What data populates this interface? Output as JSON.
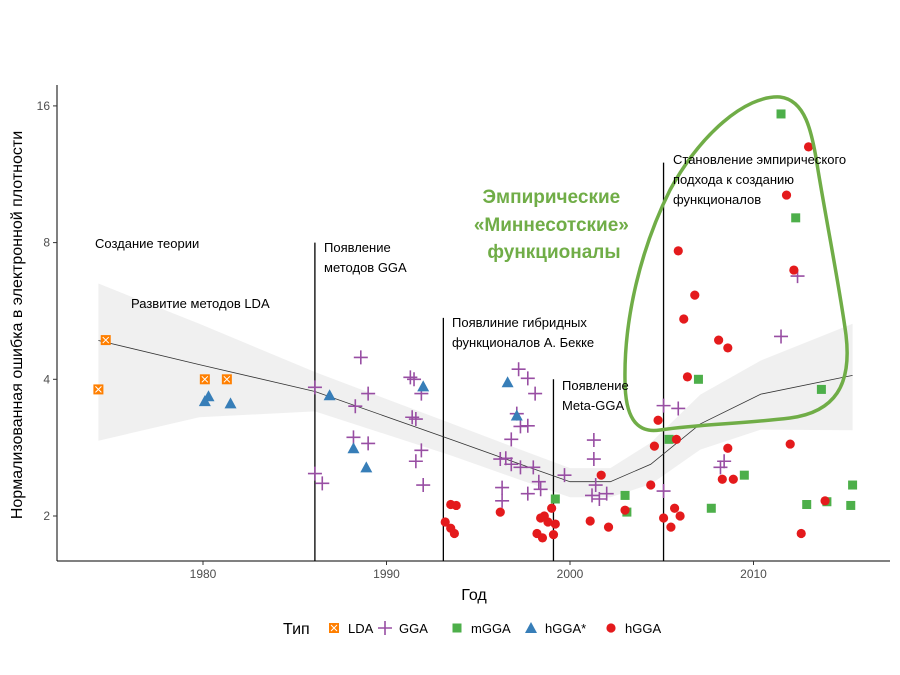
{
  "chart_data": {
    "type": "scatter",
    "xlabel": "Год",
    "ylabel": "Нормализованная ошибка в электронной плотности",
    "x_ticks": [
      1980,
      1990,
      2000,
      2010
    ],
    "y_ticks": [
      2,
      4,
      8,
      16
    ],
    "xlim": [
      1972,
      2017.4
    ],
    "ylim": [
      1.6,
      17.8
    ],
    "y_scale": "log2",
    "grid": false,
    "legend": {
      "title": "Тип",
      "placement": "bottom",
      "entries": [
        "LDA",
        "GGA",
        "mGGA",
        "hGGA*",
        "hGGA"
      ]
    },
    "colors": {
      "LDA": "#FF7F00",
      "GGA": "#984EA3",
      "mGGA": "#4DAF4A",
      "hGGA*": "#377EB8",
      "hGGA": "#E41A1C",
      "highlight": "#70AD47"
    },
    "markers": {
      "LDA": "square-cross",
      "GGA": "plus",
      "mGGA": "square",
      "hGGA*": "triangle",
      "hGGA": "circle"
    },
    "series": [
      {
        "name": "LDA",
        "points": [
          [
            1974.7,
            4.88
          ],
          [
            1974.3,
            3.8
          ],
          [
            1980.1,
            4.0
          ],
          [
            1981.3,
            4.0
          ]
        ]
      },
      {
        "name": "GGA",
        "points": [
          [
            1986.1,
            3.84
          ],
          [
            1988.6,
            4.47
          ],
          [
            1989.0,
            3.72
          ],
          [
            1988.3,
            3.49
          ],
          [
            1988.2,
            2.98
          ],
          [
            1989.0,
            2.89
          ],
          [
            1986.1,
            2.48
          ],
          [
            1986.5,
            2.36
          ],
          [
            1991.3,
            4.04
          ],
          [
            1991.5,
            4.0
          ],
          [
            1991.9,
            3.72
          ],
          [
            1991.4,
            3.3
          ],
          [
            1991.6,
            3.27
          ],
          [
            1991.9,
            2.79
          ],
          [
            1991.6,
            2.64
          ],
          [
            1992.0,
            2.34
          ],
          [
            1997.2,
            4.21
          ],
          [
            1997.7,
            4.02
          ],
          [
            1998.1,
            3.72
          ],
          [
            1996.8,
            2.95
          ],
          [
            1997.1,
            3.36
          ],
          [
            1997.3,
            3.15
          ],
          [
            1997.7,
            3.16
          ],
          [
            1996.5,
            2.68
          ],
          [
            1996.2,
            2.67
          ],
          [
            1996.8,
            2.6
          ],
          [
            1997.3,
            2.56
          ],
          [
            1998.0,
            2.56
          ],
          [
            1998.3,
            2.38
          ],
          [
            1998.4,
            2.29
          ],
          [
            1996.3,
            2.31
          ],
          [
            1996.3,
            2.16
          ],
          [
            1997.7,
            2.24
          ],
          [
            1999.7,
            2.46
          ],
          [
            2001.3,
            2.94
          ],
          [
            2001.3,
            2.67
          ],
          [
            2001.4,
            2.34
          ],
          [
            2001.2,
            2.22
          ],
          [
            2001.6,
            2.18
          ],
          [
            2002.0,
            2.24
          ],
          [
            2005.1,
            3.5
          ],
          [
            2005.9,
            3.45
          ],
          [
            2005.1,
            2.27
          ],
          [
            2008.4,
            2.64
          ],
          [
            2008.2,
            2.56
          ],
          [
            2011.5,
            4.97
          ],
          [
            2012.4,
            6.75
          ]
        ]
      },
      {
        "name": "mGGA",
        "points": [
          [
            2011.5,
            15.36
          ],
          [
            2012.3,
            9.07
          ],
          [
            2007.0,
            4.0
          ],
          [
            2013.7,
            3.8
          ],
          [
            2005.4,
            2.95
          ],
          [
            2009.5,
            2.46
          ],
          [
            1999.2,
            2.18
          ],
          [
            2003.0,
            2.22
          ],
          [
            2003.1,
            2.04
          ],
          [
            2007.7,
            2.08
          ],
          [
            2015.4,
            2.34
          ],
          [
            2012.9,
            2.12
          ],
          [
            2014.0,
            2.15
          ],
          [
            2015.3,
            2.11
          ]
        ]
      },
      {
        "name": "hGGA*",
        "points": [
          [
            1980.3,
            3.67
          ],
          [
            1980.1,
            3.58
          ],
          [
            1981.5,
            3.54
          ],
          [
            1986.9,
            3.69
          ],
          [
            1988.2,
            2.82
          ],
          [
            1988.9,
            2.56
          ],
          [
            1992.0,
            3.86
          ],
          [
            1996.6,
            3.94
          ],
          [
            1997.1,
            3.33
          ]
        ]
      },
      {
        "name": "hGGA",
        "points": [
          [
            2013.0,
            13.0
          ],
          [
            2011.8,
            10.18
          ],
          [
            2005.9,
            7.67
          ],
          [
            2012.2,
            6.96
          ],
          [
            2006.8,
            6.13
          ],
          [
            2006.2,
            5.43
          ],
          [
            2008.1,
            4.88
          ],
          [
            2008.6,
            4.69
          ],
          [
            2006.4,
            4.05
          ],
          [
            2004.8,
            3.25
          ],
          [
            2004.6,
            2.85
          ],
          [
            2005.8,
            2.95
          ],
          [
            2008.6,
            2.82
          ],
          [
            2012.0,
            2.88
          ],
          [
            2001.7,
            2.46
          ],
          [
            2004.4,
            2.34
          ],
          [
            2003.0,
            2.06
          ],
          [
            2005.7,
            2.08
          ],
          [
            2005.1,
            1.98
          ],
          [
            2006.0,
            2.0
          ],
          [
            2005.5,
            1.89
          ],
          [
            2008.3,
            2.41
          ],
          [
            2008.9,
            2.41
          ],
          [
            2013.9,
            2.16
          ],
          [
            2012.6,
            1.83
          ],
          [
            2001.1,
            1.95
          ],
          [
            2002.1,
            1.89
          ],
          [
            1993.5,
            2.12
          ],
          [
            1993.8,
            2.11
          ],
          [
            1993.2,
            1.94
          ],
          [
            1993.5,
            1.88
          ],
          [
            1993.7,
            1.83
          ],
          [
            1996.2,
            2.04
          ],
          [
            1999.0,
            2.08
          ],
          [
            1998.4,
            1.98
          ],
          [
            1998.6,
            2.0
          ],
          [
            1998.8,
            1.94
          ],
          [
            1999.2,
            1.92
          ],
          [
            1999.1,
            1.82
          ],
          [
            1998.2,
            1.83
          ],
          [
            1998.5,
            1.79
          ]
        ]
      }
    ],
    "smooth": {
      "x": [
        1974.3,
        1979.8,
        1986.1,
        1993.5,
        1997.3,
        2000.0,
        2002.2,
        2004.4,
        2007.1,
        2010.4,
        2015.4
      ],
      "y": [
        4.87,
        4.31,
        3.76,
        2.95,
        2.6,
        2.38,
        2.38,
        2.6,
        3.19,
        3.71,
        4.08
      ],
      "ci_upper": [
        6.5,
        5.3,
        4.15,
        3.2,
        2.8,
        2.55,
        2.55,
        2.9,
        3.7,
        4.4,
        5.3
      ],
      "ci_lower": [
        2.93,
        3.3,
        3.4,
        2.72,
        2.4,
        2.2,
        2.2,
        2.35,
        2.8,
        3.1,
        3.09
      ]
    },
    "event_lines": [
      {
        "year": 1986,
        "top": 8
      },
      {
        "year": 1993,
        "top": 5.46
      },
      {
        "year": 1999,
        "top": 4
      },
      {
        "year": 2005,
        "top": 12
      }
    ],
    "annotations": [
      {
        "lines": [
          "Создание теории"
        ]
      },
      {
        "lines": [
          "Развитие методов LDA"
        ]
      },
      {
        "lines": [
          "Появление",
          "методов GGA"
        ]
      },
      {
        "lines": [
          "Появлиние гибридных",
          "функционалов А. Бекке"
        ]
      },
      {
        "lines": [
          "Появление",
          "Meta-GGA"
        ]
      },
      {
        "lines": [
          "Становление эмпирического",
          "подхода к созданию",
          "функционалов"
        ]
      }
    ],
    "highlight_label": [
      "Эмпирические",
      "«Миннесотские»",
      "функционалы"
    ]
  }
}
